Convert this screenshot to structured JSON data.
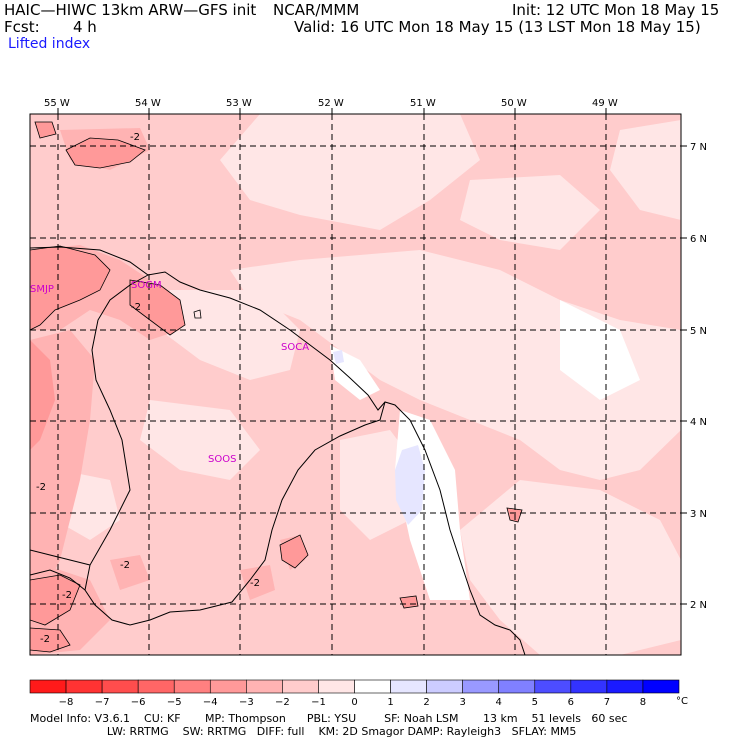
{
  "header": {
    "model_line": "HAIC—HIWC 13km ARW—GFS init",
    "center": "NCAR/MMM",
    "init": "Init: 12 UTC Mon 18 May 15",
    "fcst_label": "Fcst:",
    "fcst_value": "4 h",
    "valid": "Valid: 16 UTC Mon 18 May 15 (13 LST Mon 18 May 15)",
    "field": "Lifted index"
  },
  "map": {
    "lon_labels": [
      "55 W",
      "54 W",
      "53 W",
      "52 W",
      "51 W",
      "50 W",
      "49 W"
    ],
    "lat_labels": [
      "7 N",
      "6 N",
      "5 N",
      "4 N",
      "3 N",
      "2 N"
    ],
    "station_labels": [
      "SMJP",
      "SOGM",
      "SOCA",
      "SOOS"
    ],
    "contour_label": "-2",
    "contour_label_alt": "−2"
  },
  "colorbar": {
    "ticks": [
      "−8",
      "−7",
      "−6",
      "−5",
      "−4",
      "−3",
      "−2",
      "−1",
      "0",
      "1",
      "2",
      "3",
      "4",
      "5",
      "6",
      "7",
      "8"
    ],
    "unit": "°C",
    "colors": [
      "#ff1a1a",
      "#ff3333",
      "#ff4d4d",
      "#ff6666",
      "#ff8080",
      "#ff9999",
      "#ffb3b3",
      "#ffcccc",
      "#ffe6e6",
      "#ffffff",
      "#e6e6ff",
      "#ccccff",
      "#9999ff",
      "#8080ff",
      "#4d4dff",
      "#3333ff",
      "#1a1aff",
      "#0000ff"
    ]
  },
  "footer": {
    "line1": "Model Info: V3.6.1    CU: KF       MP: Thompson      PBL: YSU        SF: Noah LSM       13 km    51 levels   60 sec",
    "line2": "                      LW: RRTMG    SW: RRTMG   DIFF: full    KM: 2D Smagor DAMP: Rayleigh3   SFLAY: MM5"
  }
}
